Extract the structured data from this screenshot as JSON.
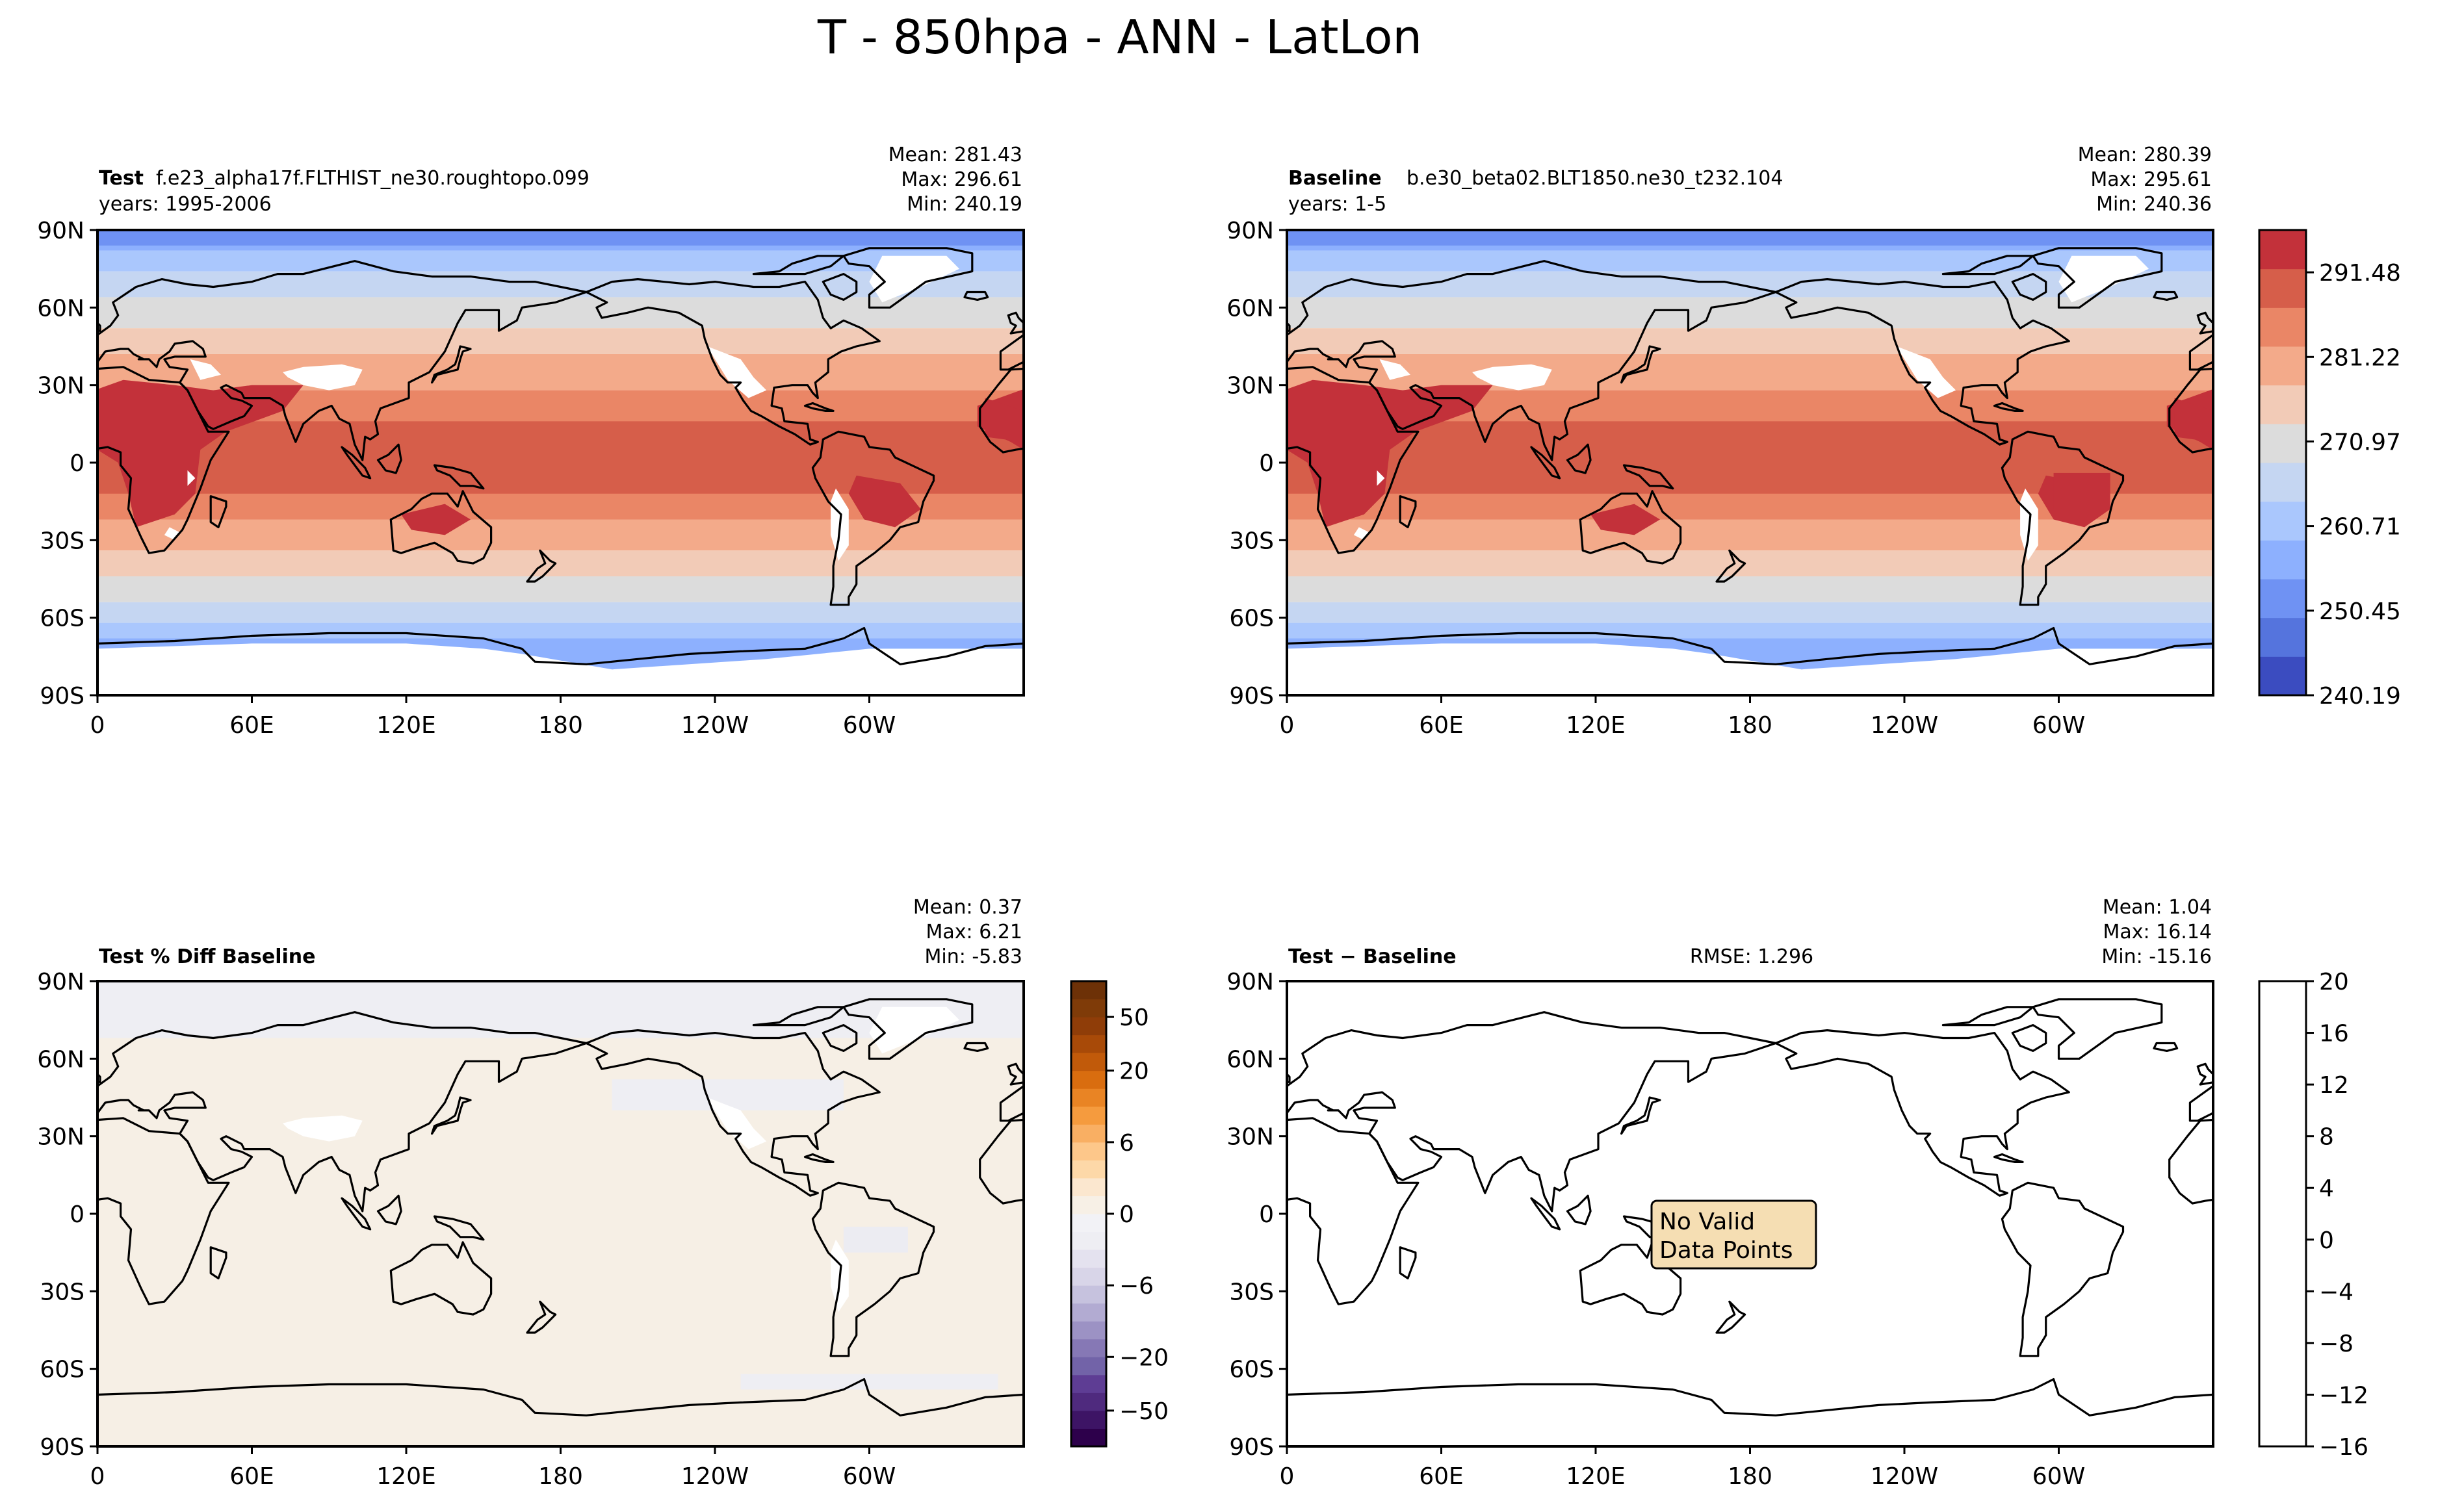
{
  "figure": {
    "title": "T - 850hpa - ANN - LatLon"
  },
  "axes": {
    "lat_ticks": [
      "90N",
      "60N",
      "30N",
      "0",
      "30S",
      "60S",
      "90S"
    ],
    "lon_ticks": [
      "0",
      "60E",
      "120E",
      "180",
      "120W",
      "60W"
    ]
  },
  "chart_data": [
    {
      "type": "heatmap",
      "panel": "test",
      "label_bold": "Test",
      "case_name": "f.e23_alpha17f.FLTHIST_ne30.roughtopo.099",
      "years": "years: 1995-2006",
      "stats": {
        "mean": "Mean: 281.43",
        "max": "Max: 296.61",
        "min": "Min: 240.19"
      },
      "xlim": [
        0,
        360
      ],
      "ylim": [
        -90,
        90
      ],
      "colormap": "coolwarm",
      "value_range": [
        240.19,
        296.61
      ]
    },
    {
      "type": "heatmap",
      "panel": "baseline",
      "label_bold": "Baseline",
      "case_name": "b.e30_beta02.BLT1850.ne30_t232.104",
      "years": "years: 1-5",
      "stats": {
        "mean": "Mean: 280.39",
        "max": "Max: 295.61",
        "min": "Min: 240.36"
      },
      "xlim": [
        0,
        360
      ],
      "ylim": [
        -90,
        90
      ],
      "colormap": "coolwarm",
      "colorbar_ticks": [
        "291.48",
        "281.22",
        "270.97",
        "260.71",
        "250.45",
        "240.19"
      ],
      "colorbar_tick_values": [
        291.48,
        281.22,
        270.97,
        260.71,
        250.45,
        240.19
      ],
      "colorbar_range": [
        240.19,
        296.61
      ]
    },
    {
      "type": "heatmap",
      "panel": "pct_diff",
      "label_bold": "Test % Diff Baseline",
      "stats": {
        "mean": "Mean:  0.37",
        "max": "Max:  6.21",
        "min": "Min: -5.83"
      },
      "xlim": [
        0,
        360
      ],
      "ylim": [
        -90,
        90
      ],
      "colormap": "PuOr_r",
      "colorbar_levels": [
        -100,
        -70,
        -50,
        -40,
        -30,
        -20,
        -15,
        -10,
        -8,
        -6,
        -4,
        -2,
        -1,
        0,
        1,
        2,
        4,
        6,
        8,
        10,
        15,
        20,
        30,
        40,
        50,
        70,
        100
      ],
      "colorbar_ticks": [
        "50",
        "20",
        "6",
        "0",
        "−6",
        "−20",
        "−50"
      ],
      "colorbar_tick_values": [
        50,
        20,
        6,
        0,
        -6,
        -20,
        -50
      ]
    },
    {
      "type": "heatmap",
      "panel": "diff",
      "label_bold": "Test − Baseline",
      "rmse": "RMSE: 1.296",
      "stats": {
        "mean": "Mean:  1.04",
        "max": "Max: 16.14",
        "min": "Min: -15.16"
      },
      "xlim": [
        0,
        360
      ],
      "ylim": [
        -90,
        90
      ],
      "annotation": [
        "No Valid",
        "Data Points"
      ],
      "colorbar_ticks": [
        "20",
        "16",
        "12",
        "8",
        "4",
        "0",
        "−4",
        "−8",
        "−12",
        "−16"
      ],
      "colorbar_tick_values": [
        20,
        16,
        12,
        8,
        4,
        0,
        -4,
        -8,
        -12,
        -16
      ],
      "colorbar_range": [
        -16,
        20
      ]
    }
  ],
  "colors": {
    "cool_bands": [
      "#3b4cc0",
      "#5574dd",
      "#6f92f3",
      "#8db0fe",
      "#aac7fd",
      "#c5d6f2"
    ],
    "neutral": "#dcdcdc",
    "warm_bands": [
      "#f2cbb7",
      "#f3aa8a",
      "#ea8666",
      "#d65e4a",
      "#c3313a"
    ],
    "land_mask": "#ffffff",
    "diff_near_zero": "#f6efe5",
    "annotation_fill": "#f5deb3"
  }
}
